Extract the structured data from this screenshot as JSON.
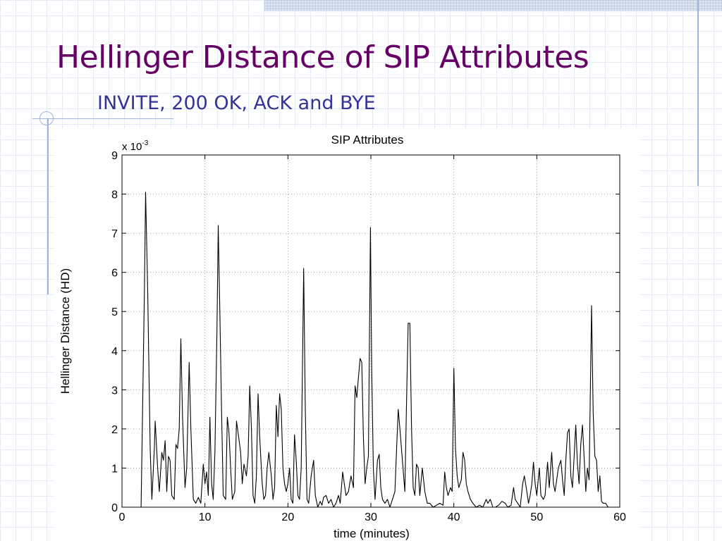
{
  "slide": {
    "title": "Hellinger Distance of SIP Attributes",
    "subtitle": "INVITE, 200 OK, ACK and BYE",
    "title_color": "#660066",
    "subtitle_color": "#333399"
  },
  "chart_data": {
    "type": "line",
    "title": "SIP Attributes",
    "xlabel": "time (minutes)",
    "ylabel": "Hellinger Distance (HD)",
    "y_multiplier_label": "x 10",
    "y_multiplier_exponent": "-3",
    "xlim": [
      0,
      60
    ],
    "ylim": [
      0,
      9
    ],
    "xticks": [
      0,
      10,
      20,
      30,
      40,
      50,
      60
    ],
    "yticks": [
      0,
      1,
      2,
      3,
      4,
      5,
      6,
      7,
      8,
      9
    ],
    "grid": "dotted",
    "series": [
      {
        "color": "#000000",
        "points": [
          [
            0,
            0
          ],
          [
            2.3,
            0
          ],
          [
            2.7,
            5.5
          ],
          [
            2.85,
            8.05
          ],
          [
            3.1,
            5.5
          ],
          [
            3.4,
            1.5
          ],
          [
            3.6,
            0.2
          ],
          [
            3.9,
            1.5
          ],
          [
            4.0,
            2.2
          ],
          [
            4.3,
            1.0
          ],
          [
            4.5,
            0.4
          ],
          [
            4.8,
            1.4
          ],
          [
            5.0,
            1.2
          ],
          [
            5.2,
            1.7
          ],
          [
            5.4,
            0.4
          ],
          [
            5.6,
            1.3
          ],
          [
            5.8,
            1.2
          ],
          [
            6.0,
            0.3
          ],
          [
            6.3,
            0.2
          ],
          [
            6.5,
            1.6
          ],
          [
            6.7,
            1.5
          ],
          [
            6.9,
            2.0
          ],
          [
            7.1,
            4.3
          ],
          [
            7.3,
            2.3
          ],
          [
            7.6,
            0.5
          ],
          [
            7.8,
            1.0
          ],
          [
            8.1,
            3.7
          ],
          [
            8.3,
            2.0
          ],
          [
            8.6,
            0.2
          ],
          [
            8.9,
            0.1
          ],
          [
            9.2,
            0.25
          ],
          [
            9.5,
            0.1
          ],
          [
            9.8,
            1.1
          ],
          [
            10.0,
            0.6
          ],
          [
            10.2,
            0.9
          ],
          [
            10.4,
            0.3
          ],
          [
            10.6,
            2.3
          ],
          [
            10.8,
            0.6
          ],
          [
            11.0,
            0.2
          ],
          [
            11.2,
            1.4
          ],
          [
            11.45,
            4.5
          ],
          [
            11.6,
            7.2
          ],
          [
            11.8,
            5.0
          ],
          [
            12.0,
            2.5
          ],
          [
            12.2,
            0.3
          ],
          [
            12.5,
            0.2
          ],
          [
            12.7,
            2.3
          ],
          [
            12.9,
            1.9
          ],
          [
            13.1,
            1.0
          ],
          [
            13.3,
            0.2
          ],
          [
            13.6,
            0.4
          ],
          [
            13.8,
            2.2
          ],
          [
            14.0,
            1.9
          ],
          [
            14.3,
            1.4
          ],
          [
            14.5,
            0.6
          ],
          [
            14.7,
            1.1
          ],
          [
            15.0,
            0.8
          ],
          [
            15.2,
            1.3
          ],
          [
            15.4,
            3.1
          ],
          [
            15.6,
            2.0
          ],
          [
            15.8,
            0.3
          ],
          [
            16.0,
            0.1
          ],
          [
            16.2,
            0.8
          ],
          [
            16.4,
            2.9
          ],
          [
            16.6,
            1.8
          ],
          [
            16.9,
            0.6
          ],
          [
            17.1,
            0.2
          ],
          [
            17.3,
            0.3
          ],
          [
            17.5,
            1.0
          ],
          [
            17.7,
            1.4
          ],
          [
            18.0,
            0.8
          ],
          [
            18.2,
            0.2
          ],
          [
            18.4,
            0.5
          ],
          [
            18.6,
            2.6
          ],
          [
            18.8,
            1.8
          ],
          [
            19.0,
            2.9
          ],
          [
            19.2,
            2.5
          ],
          [
            19.4,
            1.0
          ],
          [
            19.6,
            0.6
          ],
          [
            19.8,
            0.4
          ],
          [
            20.0,
            0.6
          ],
          [
            20.2,
            1.0
          ],
          [
            20.4,
            0.2
          ],
          [
            20.6,
            0.1
          ],
          [
            20.8,
            1.85
          ],
          [
            21.0,
            1.2
          ],
          [
            21.2,
            0.3
          ],
          [
            21.4,
            0.2
          ],
          [
            21.6,
            1.0
          ],
          [
            21.9,
            6.1
          ],
          [
            22.1,
            2.5
          ],
          [
            22.3,
            0.2
          ],
          [
            22.5,
            0.1
          ],
          [
            22.8,
            0.8
          ],
          [
            23.1,
            1.2
          ],
          [
            23.3,
            0.3
          ],
          [
            23.6,
            0
          ],
          [
            23.9,
            0.15
          ],
          [
            24.1,
            0.05
          ],
          [
            24.3,
            0.25
          ],
          [
            24.6,
            0.3
          ],
          [
            24.9,
            0.1
          ],
          [
            25.2,
            0.2
          ],
          [
            25.5,
            0
          ],
          [
            25.8,
            0.1
          ],
          [
            26.1,
            0.3
          ],
          [
            26.3,
            0.1
          ],
          [
            26.6,
            0.9
          ],
          [
            26.8,
            0.6
          ],
          [
            27.0,
            0.3
          ],
          [
            27.3,
            0.4
          ],
          [
            27.6,
            0.8
          ],
          [
            27.9,
            0.5
          ],
          [
            28.1,
            3.1
          ],
          [
            28.3,
            2.8
          ],
          [
            28.5,
            3.3
          ],
          [
            28.7,
            3.8
          ],
          [
            28.9,
            3.7
          ],
          [
            29.1,
            1.8
          ],
          [
            29.3,
            0.6
          ],
          [
            29.5,
            1.0
          ],
          [
            29.7,
            1.3
          ],
          [
            29.95,
            7.15
          ],
          [
            30.1,
            3.5
          ],
          [
            30.3,
            1.0
          ],
          [
            30.5,
            0.2
          ],
          [
            30.8,
            1.2
          ],
          [
            31.0,
            1.35
          ],
          [
            31.2,
            0.5
          ],
          [
            31.4,
            0.2
          ],
          [
            31.7,
            0.1
          ],
          [
            32.0,
            0.2
          ],
          [
            32.3,
            0
          ],
          [
            32.6,
            0.2
          ],
          [
            32.9,
            0.4
          ],
          [
            33.1,
            1.5
          ],
          [
            33.3,
            2.5
          ],
          [
            33.5,
            2.0
          ],
          [
            33.8,
            1.2
          ],
          [
            34.1,
            0.4
          ],
          [
            34.3,
            2.7
          ],
          [
            34.5,
            4.7
          ],
          [
            34.7,
            4.7
          ],
          [
            34.9,
            2.0
          ],
          [
            35.1,
            0.5
          ],
          [
            35.3,
            0.3
          ],
          [
            35.5,
            1.1
          ],
          [
            35.7,
            1.0
          ],
          [
            35.9,
            0.3
          ],
          [
            36.2,
            1.0
          ],
          [
            36.5,
            0.4
          ],
          [
            36.8,
            0.1
          ],
          [
            37.1,
            0.1
          ],
          [
            37.5,
            0
          ],
          [
            37.9,
            0.05
          ],
          [
            38.3,
            0.1
          ],
          [
            38.7,
            0.05
          ],
          [
            38.9,
            0.9
          ],
          [
            39.1,
            0.5
          ],
          [
            39.3,
            0.3
          ],
          [
            39.6,
            0.5
          ],
          [
            39.8,
            0.4
          ],
          [
            40.0,
            3.55
          ],
          [
            40.2,
            1.5
          ],
          [
            40.4,
            0.8
          ],
          [
            40.6,
            0.5
          ],
          [
            40.9,
            0.7
          ],
          [
            41.1,
            1.4
          ],
          [
            41.3,
            1.2
          ],
          [
            41.5,
            0.6
          ],
          [
            41.7,
            0.4
          ],
          [
            42.0,
            0.2
          ],
          [
            42.3,
            0.1
          ],
          [
            42.7,
            0
          ],
          [
            43.1,
            0.05
          ],
          [
            43.5,
            0
          ],
          [
            43.9,
            0.2
          ],
          [
            44.1,
            0.1
          ],
          [
            44.4,
            0.2
          ],
          [
            44.7,
            0
          ],
          [
            45.0,
            0
          ],
          [
            45.4,
            0.05
          ],
          [
            45.8,
            0.15
          ],
          [
            46.2,
            0.1
          ],
          [
            46.5,
            0
          ],
          [
            46.9,
            0.05
          ],
          [
            47.2,
            0.5
          ],
          [
            47.4,
            0.2
          ],
          [
            47.7,
            0.1
          ],
          [
            48.0,
            0
          ],
          [
            48.3,
            0.6
          ],
          [
            48.5,
            0.8
          ],
          [
            48.8,
            0.4
          ],
          [
            49.0,
            0.1
          ],
          [
            49.2,
            0.3
          ],
          [
            49.4,
            0.6
          ],
          [
            49.6,
            1.15
          ],
          [
            49.8,
            0.6
          ],
          [
            50.0,
            0.3
          ],
          [
            50.3,
            1.0
          ],
          [
            50.5,
            0.3
          ],
          [
            50.8,
            0.2
          ],
          [
            51.0,
            0.3
          ],
          [
            51.3,
            1.15
          ],
          [
            51.5,
            0.5
          ],
          [
            51.8,
            1.4
          ],
          [
            52.0,
            0.6
          ],
          [
            52.2,
            0.4
          ],
          [
            52.4,
            0.7
          ],
          [
            52.6,
            1.0
          ],
          [
            52.9,
            1.2
          ],
          [
            53.1,
            0.7
          ],
          [
            53.3,
            0.3
          ],
          [
            53.5,
            1.2
          ],
          [
            53.7,
            1.9
          ],
          [
            53.9,
            2.0
          ],
          [
            54.1,
            0.8
          ],
          [
            54.3,
            0.5
          ],
          [
            54.5,
            1.3
          ],
          [
            54.7,
            2.1
          ],
          [
            54.9,
            1.1
          ],
          [
            55.1,
            0.6
          ],
          [
            55.3,
            1.6
          ],
          [
            55.5,
            2.1
          ],
          [
            55.7,
            1.3
          ],
          [
            55.9,
            0.4
          ],
          [
            56.1,
            1.0
          ],
          [
            56.3,
            0.7
          ],
          [
            56.6,
            5.15
          ],
          [
            56.8,
            2.4
          ],
          [
            57.0,
            1.3
          ],
          [
            57.2,
            1.2
          ],
          [
            57.4,
            0.4
          ],
          [
            57.6,
            0.8
          ],
          [
            57.8,
            0.15
          ],
          [
            58.0,
            0.1
          ],
          [
            58.3,
            0.1
          ],
          [
            58.6,
            0
          ],
          [
            59.0,
            0
          ]
        ]
      }
    ]
  }
}
